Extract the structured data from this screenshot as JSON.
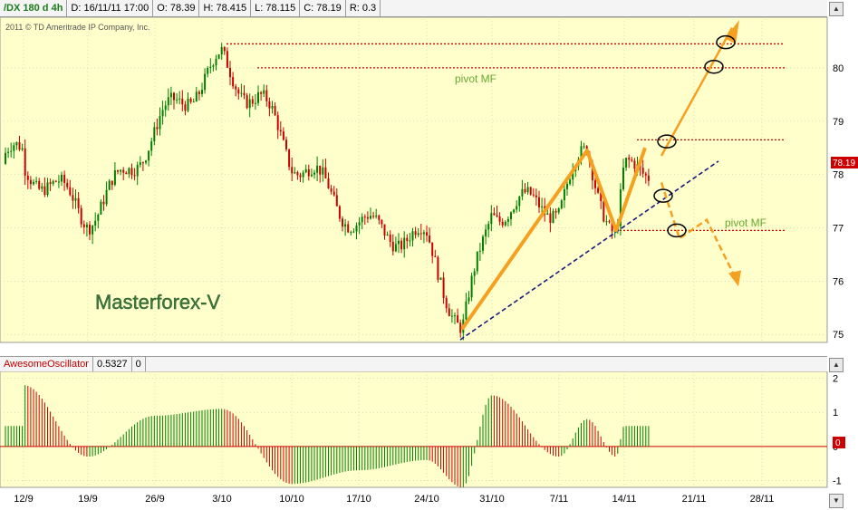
{
  "header": {
    "symbol": "/DX 180 d 4h",
    "date": "D: 16/11/11 17:00",
    "open": "O: 78.39",
    "high": "H: 78.415",
    "low": "L: 78.115",
    "close": "C: 78.19",
    "range": "R: 0.3"
  },
  "copyright": "2011 © TD Ameritrade IP Company, Inc.",
  "watermark": "Masterforex-V",
  "last_price_tag": "78.19",
  "oscillator": {
    "name": "AwesomeOscillator",
    "value": "0.5327",
    "extra": "0",
    "zero_tag": "0"
  },
  "annotations": {
    "pivot_top": "pivot MF",
    "pivot_bottom": "pivot MF"
  },
  "colors": {
    "up_candle": "#008000",
    "down_candle": "#cc0000",
    "pane_bg": "#ffffcc",
    "forecast": "#f5a020",
    "trendline": "#1a1a80",
    "level": "#cc0000"
  },
  "chart_data": {
    "type": "candlestick",
    "x_ticks": [
      "12/9",
      "19/9",
      "26/9",
      "3/10",
      "10/10",
      "17/10",
      "24/10",
      "31/10",
      "7/11",
      "14/11",
      "21/11",
      "28/11"
    ],
    "y_ticks": [
      "75",
      "76",
      "77",
      "78",
      "79",
      "80"
    ],
    "ylim": [
      74.85,
      80.95
    ],
    "price_path": [
      [
        "12/9",
        77.9
      ],
      [
        "19/9",
        77.4
      ],
      [
        "26/9",
        78.6
      ],
      [
        "3/10",
        80.3
      ],
      [
        "6/10",
        79.4
      ],
      [
        "10/10",
        78.1
      ],
      [
        "17/10",
        77.3
      ],
      [
        "24/10",
        76.5
      ],
      [
        "28/10",
        75.1
      ],
      [
        "31/10",
        77.6
      ],
      [
        "7/11",
        77.2
      ],
      [
        "10/11",
        78.4
      ],
      [
        "12/11",
        77.0
      ],
      [
        "14/11",
        78.2
      ]
    ],
    "levels": [
      80.45,
      80.0,
      78.65,
      76.95
    ],
    "oscillator_ylim": [
      -1.2,
      2.2
    ],
    "oscillator_ticks": [
      "2",
      "1",
      "0",
      "-1"
    ],
    "oscillator_path": [
      [
        "12/9",
        1.8
      ],
      [
        "19/9",
        -0.3
      ],
      [
        "26/9",
        0.9
      ],
      [
        "3/10",
        1.1
      ],
      [
        "10/10",
        -1.1
      ],
      [
        "17/10",
        -0.7
      ],
      [
        "24/10",
        -0.4
      ],
      [
        "28/10",
        -1.2
      ],
      [
        "31/10",
        1.5
      ],
      [
        "7/11",
        -0.3
      ],
      [
        "10/11",
        0.8
      ],
      [
        "12/11",
        -0.3
      ],
      [
        "14/11",
        0.6
      ]
    ]
  }
}
